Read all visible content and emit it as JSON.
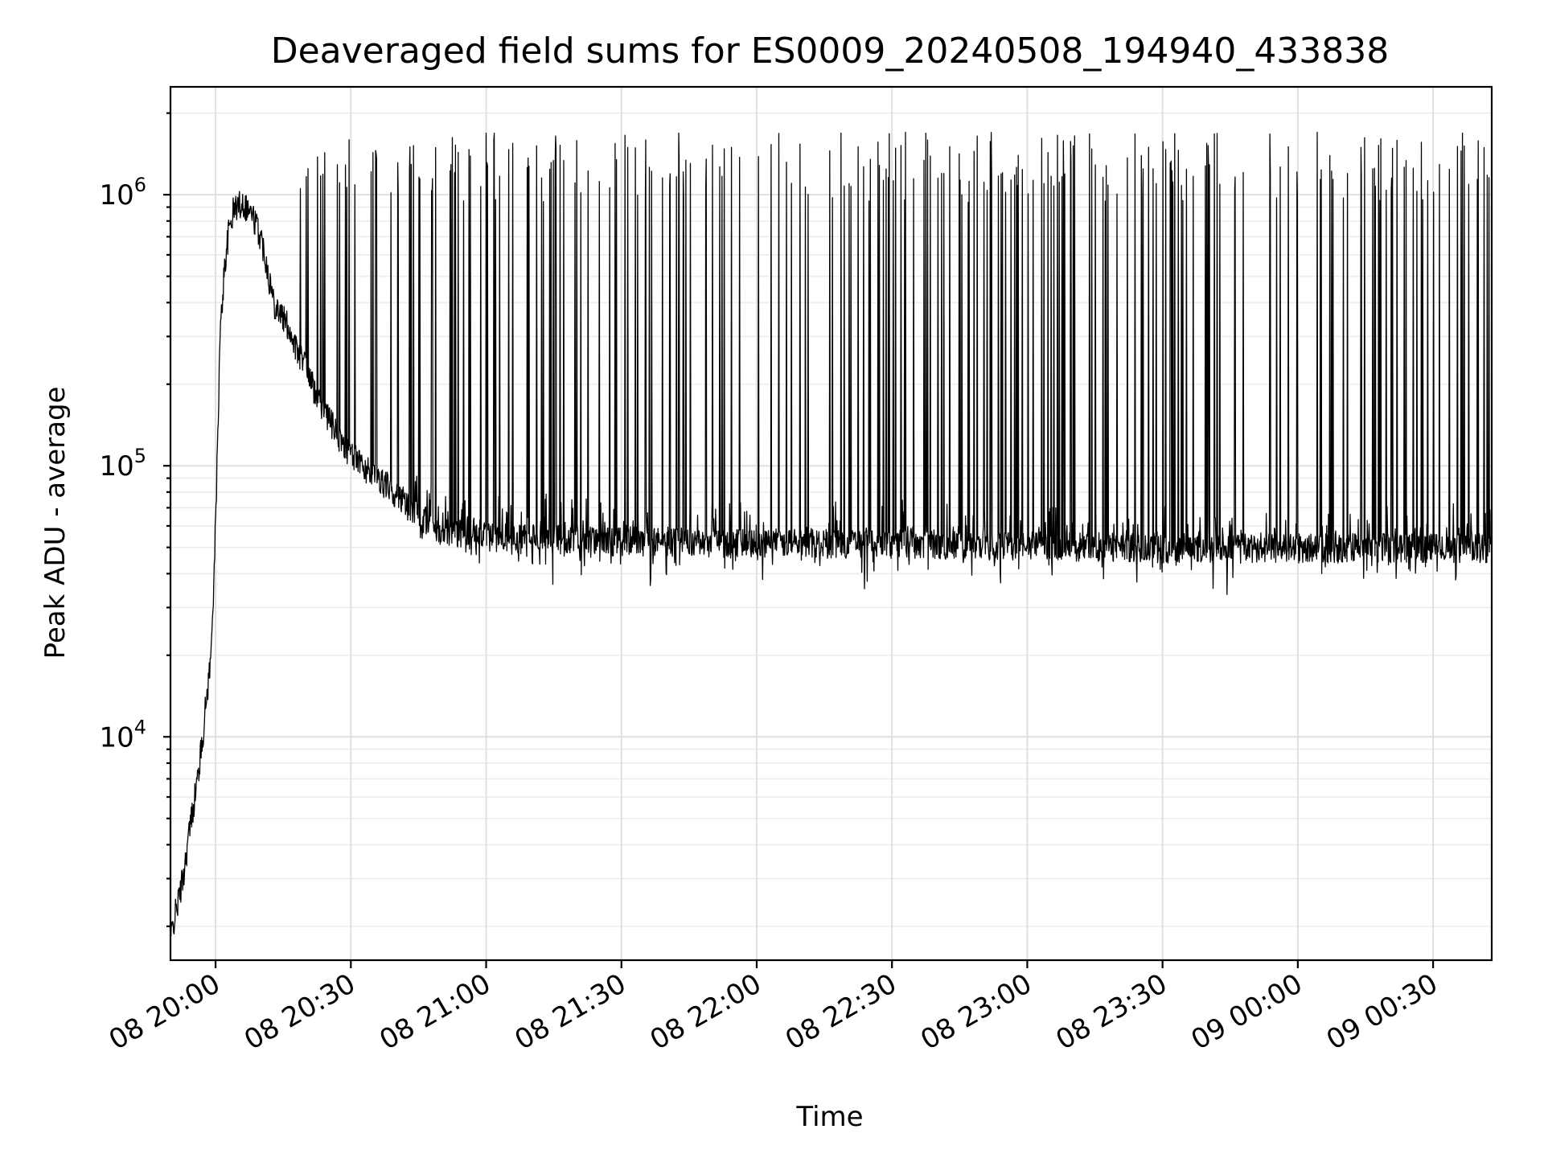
{
  "chart_data": {
    "type": "line",
    "title": "Deaveraged field sums for ES0009_20240508_194940_433838",
    "xlabel": "Time",
    "ylabel": "Peak ADU - average",
    "yscale": "log",
    "xlim": [
      "2024-05-08 19:50",
      "2024-05-09 00:43"
    ],
    "ylim": [
      1500,
      2500000
    ],
    "grid": true,
    "xtick_labels": [
      "08 20:00",
      "08 20:30",
      "08 21:00",
      "08 21:30",
      "08 22:00",
      "08 22:30",
      "08 23:00",
      "08 23:30",
      "09 00:00",
      "09 00:30"
    ],
    "ytick_labels": [
      {
        "base": "10",
        "exp": "4",
        "value": 10000
      },
      {
        "base": "10",
        "exp": "5",
        "value": 100000
      },
      {
        "base": "10",
        "exp": "6",
        "value": 1000000
      }
    ],
    "series": [
      {
        "color": "#000000",
        "x": [
          "19:50",
          "19:51",
          "19:52",
          "19:53",
          "19:54",
          "19:55",
          "19:56",
          "19:57",
          "19:58",
          "19:59",
          "20:00",
          "20:01",
          "20:02",
          "20:03",
          "20:04",
          "20:05",
          "20:06",
          "20:07",
          "20:08",
          "20:09",
          "20:10",
          "20:11",
          "20:12",
          "20:13",
          "20:14",
          "20:15",
          "20:16",
          "20:17",
          "20:18",
          "20:20",
          "20:22",
          "20:24",
          "20:26",
          "20:28",
          "20:30",
          "20:33",
          "20:36",
          "20:40",
          "20:45",
          "20:50",
          "21:00",
          "21:15",
          "21:30",
          "22:00",
          "22:30",
          "23:00",
          "23:30",
          "00:00",
          "00:30",
          "00:43"
        ],
        "y": [
          1800,
          2200,
          2600,
          3200,
          4300,
          5500,
          7000,
          9500,
          14000,
          20000,
          60000,
          300000,
          550000,
          750000,
          880000,
          920000,
          940000,
          900000,
          850000,
          780000,
          700000,
          600000,
          480000,
          400000,
          380000,
          350000,
          330000,
          300000,
          270000,
          230000,
          190000,
          160000,
          140000,
          120000,
          110000,
          100000,
          90000,
          80000,
          65000,
          58000,
          55000,
          54000,
          53000,
          52000,
          52000,
          51000,
          50000,
          50000,
          50000,
          50000
        ],
        "spike_max": 1700000,
        "spike_start": "20:18"
      }
    ]
  }
}
